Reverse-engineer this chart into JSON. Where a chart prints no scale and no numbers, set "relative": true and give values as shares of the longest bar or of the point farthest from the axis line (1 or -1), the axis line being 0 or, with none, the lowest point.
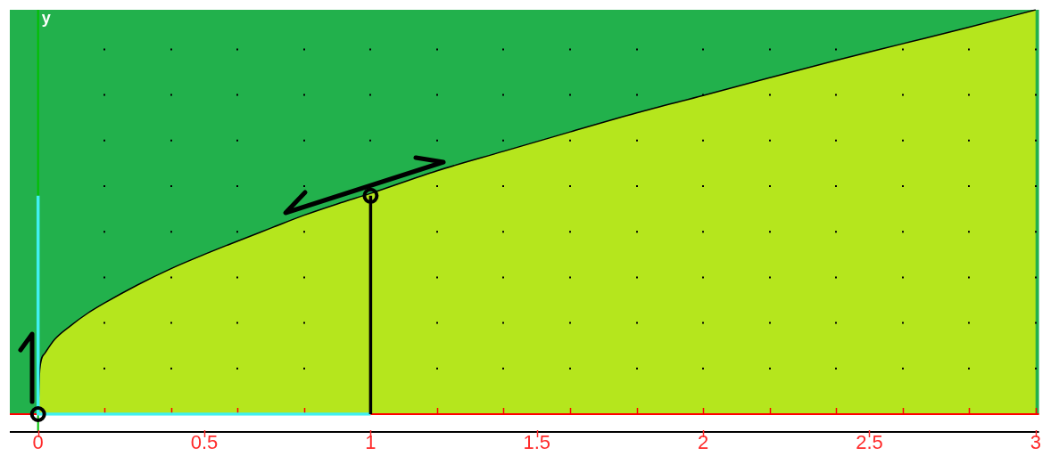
{
  "chart_data": {
    "type": "area",
    "ylabel": "y",
    "relative": true,
    "grid": "x",
    "xlim": [
      -0.085,
      3.01
    ],
    "xticks": [
      0,
      {
        "value": 0.2,
        "label": null
      },
      {
        "value": 0.4,
        "label": null
      },
      0.5,
      {
        "value": 0.6,
        "label": null
      },
      {
        "value": 0.8,
        "label": null
      },
      1,
      {
        "value": 1.2,
        "label": null
      },
      {
        "value": 1.4,
        "label": null
      },
      1.5,
      {
        "value": 1.6,
        "label": null
      },
      {
        "value": 1.8,
        "label": null
      },
      2,
      {
        "value": 2.2,
        "label": null
      },
      {
        "value": 2.4,
        "label": null
      },
      2.5,
      {
        "value": 2.6,
        "label": null
      },
      {
        "value": 2.8,
        "label": null
      },
      3
    ],
    "ref_lines": [
      {
        "axis": "x",
        "value": 0,
        "color": "#00c000"
      }
    ],
    "bands": [
      {
        "axis": "x",
        "from": -0.085,
        "to": 3.01,
        "color": "#22b14c"
      }
    ],
    "series": [
      {
        "color": "#b5e61d",
        "x": [
          0,
          0.005,
          0.02,
          0.05,
          0.1,
          0.15,
          0.2,
          0.3,
          0.4,
          0.5,
          0.6,
          0.7,
          0.8,
          0.9,
          1,
          1.2,
          1.4,
          1.6,
          1.8,
          2,
          2.2,
          2.4,
          2.6,
          2.8,
          3
        ],
        "values": [
          0,
          0.11,
          0.15,
          0.185,
          0.22,
          0.25,
          0.275,
          0.32,
          0.36,
          0.395,
          0.428,
          0.46,
          0.492,
          0.52,
          0.546,
          0.602,
          0.65,
          0.698,
          0.745,
          0.788,
          0.832,
          0.875,
          0.916,
          0.957,
          1
        ]
      },
      {
        "type": "line",
        "color": "#40f0f0",
        "x": [
          1,
          0,
          0
        ],
        "values": [
          0,
          0,
          0.54
        ]
      },
      {
        "type": "line",
        "color": "#000000",
        "x": [
          1,
          1
        ],
        "values": [
          0,
          0.54
        ]
      },
      {
        "type": "scatter",
        "color": "#000000",
        "marker": "circle",
        "x": [
          0,
          1
        ],
        "values": [
          0,
          0.54
        ]
      }
    ]
  }
}
